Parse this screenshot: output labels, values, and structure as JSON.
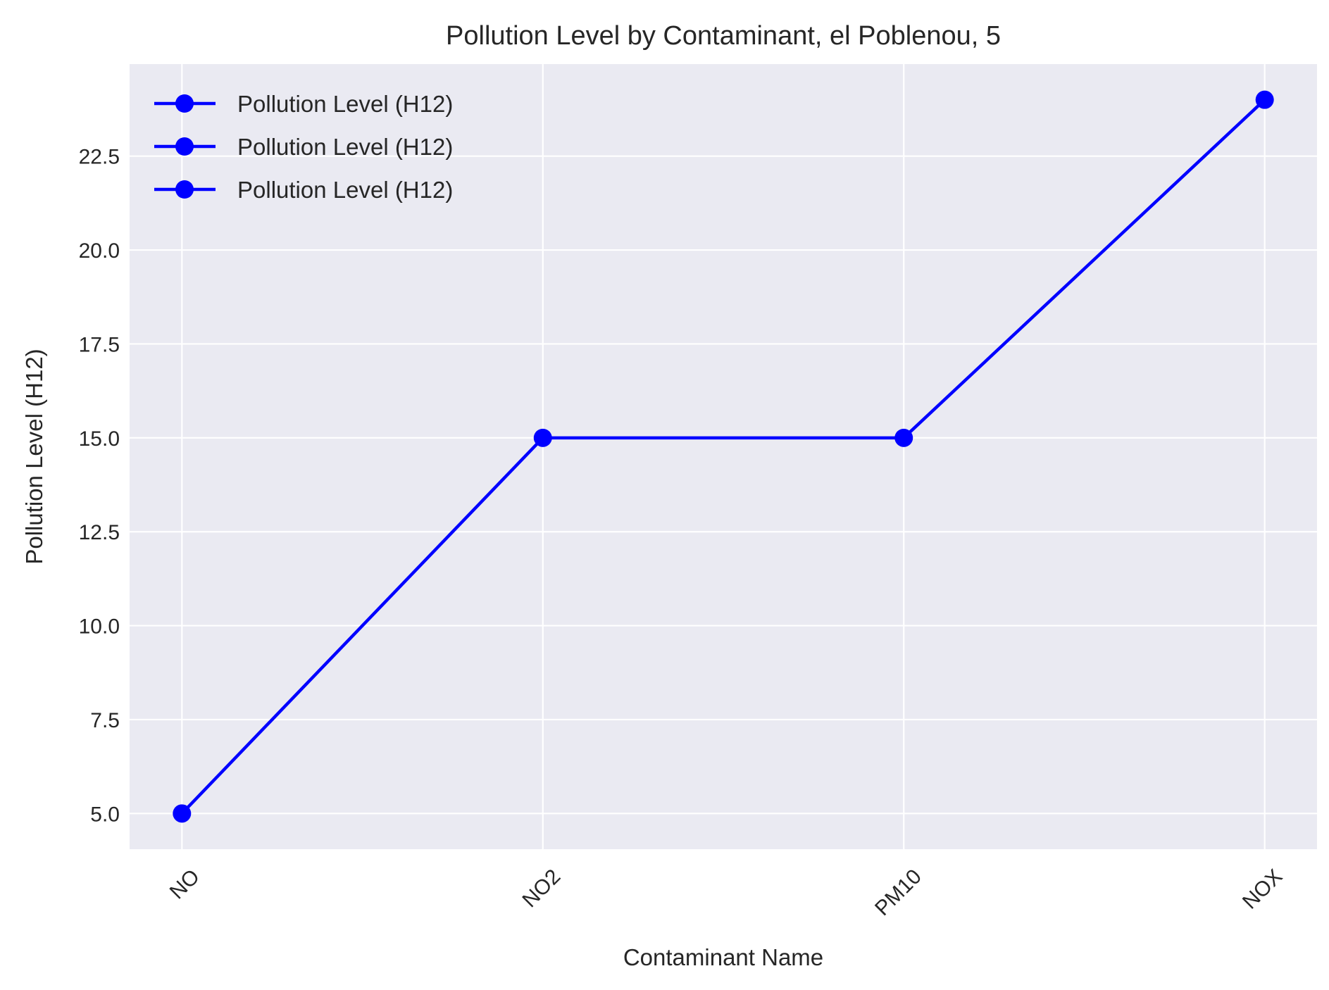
{
  "chart_data": {
    "type": "line",
    "title": "Pollution Level by Contaminant, el Poblenou, 5",
    "xlabel": "Contaminant Name",
    "ylabel": "Pollution Level (H12)",
    "categories": [
      "NO",
      "NO2",
      "PM10",
      "NOX"
    ],
    "series": [
      {
        "name": "Pollution Level (H12)",
        "values": [
          5,
          15,
          15,
          24
        ],
        "color": "#0000ff"
      }
    ],
    "legend_entries": [
      "Pollution Level (H12)",
      "Pollution Level (H12)",
      "Pollution Level (H12)"
    ],
    "ylim": [
      4.05,
      24.95
    ],
    "yticks": [
      5.0,
      7.5,
      10.0,
      12.5,
      15.0,
      17.5,
      20.0,
      22.5
    ],
    "ytick_labels": [
      "5.0",
      "7.5",
      "10.0",
      "12.5",
      "15.0",
      "17.5",
      "20.0",
      "22.5"
    ],
    "grid": true,
    "legend_position": "upper-left",
    "x_tick_rotation": 45,
    "background_color": "#eaeaf2",
    "grid_color": "#ffffff"
  }
}
